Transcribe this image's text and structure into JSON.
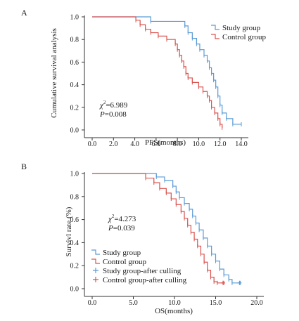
{
  "chart_data": [
    {
      "type": "line",
      "subtype": "kaplan-meier",
      "panel_label": "A",
      "xlabel": "PFS(months)",
      "ylabel": "Cumulative survival analysis",
      "xlim": [
        0,
        14.5
      ],
      "ylim": [
        0,
        1.0
      ],
      "x_ticks": [
        "0.0",
        "2.0",
        "4.0",
        "6.0",
        "8.0",
        "10.0",
        "12.0",
        "14.0"
      ],
      "y_ticks": [
        "0.0",
        "0.2",
        "0.4",
        "0.6",
        "0.8",
        "1.0"
      ],
      "legend_position": "top-right",
      "annotation": {
        "chi_label": "χ",
        "chi_sup": "2",
        "chi_value": "=6.989",
        "p_label": "P",
        "p_value": "=0.008"
      },
      "series": [
        {
          "name": "Study group",
          "color": "#5b9bd5",
          "steps": [
            [
              0,
              1.0
            ],
            [
              5.5,
              0.96
            ],
            [
              8.7,
              0.92
            ],
            [
              9.0,
              0.86
            ],
            [
              9.4,
              0.81
            ],
            [
              9.8,
              0.76
            ],
            [
              10.1,
              0.71
            ],
            [
              10.5,
              0.66
            ],
            [
              10.8,
              0.61
            ],
            [
              11.0,
              0.55
            ],
            [
              11.2,
              0.5
            ],
            [
              11.4,
              0.44
            ],
            [
              11.6,
              0.38
            ],
            [
              11.8,
              0.3
            ],
            [
              12.0,
              0.22
            ],
            [
              12.2,
              0.15
            ],
            [
              12.6,
              0.1
            ],
            [
              13.2,
              0.05
            ],
            [
              14.0,
              0.05
            ]
          ]
        },
        {
          "name": "Control group",
          "color": "#d9534f",
          "steps": [
            [
              0,
              1.0
            ],
            [
              4.1,
              0.97
            ],
            [
              4.5,
              0.93
            ],
            [
              5.0,
              0.89
            ],
            [
              5.5,
              0.86
            ],
            [
              6.2,
              0.83
            ],
            [
              7.0,
              0.8
            ],
            [
              7.8,
              0.76
            ],
            [
              8.0,
              0.71
            ],
            [
              8.2,
              0.66
            ],
            [
              8.4,
              0.61
            ],
            [
              8.6,
              0.56
            ],
            [
              8.8,
              0.5
            ],
            [
              9.0,
              0.46
            ],
            [
              9.4,
              0.42
            ],
            [
              10.0,
              0.38
            ],
            [
              10.4,
              0.34
            ],
            [
              10.8,
              0.3
            ],
            [
              11.0,
              0.26
            ],
            [
              11.2,
              0.2
            ],
            [
              11.5,
              0.15
            ],
            [
              11.8,
              0.1
            ],
            [
              12.0,
              0.05
            ],
            [
              12.2,
              0.02
            ]
          ]
        }
      ]
    },
    {
      "type": "line",
      "subtype": "kaplan-meier",
      "panel_label": "B",
      "xlabel": "OS(months)",
      "ylabel": "Survivl rate (%)",
      "xlim": [
        0,
        21
      ],
      "ylim": [
        0,
        1.0
      ],
      "x_ticks": [
        "0.0",
        "5.0",
        "10.0",
        "15.0",
        "20.0"
      ],
      "y_ticks": [
        "0.0",
        "0.2",
        "0.4",
        "0.6",
        "0.8",
        "1.0"
      ],
      "legend_position": "bottom-left",
      "annotation": {
        "chi_label": "χ",
        "chi_sup": "2",
        "chi_value": "=4.273",
        "p_label": "P",
        "p_value": "=0.039"
      },
      "series": [
        {
          "name": "Study group",
          "color": "#5b9bd5",
          "steps": [
            [
              0,
              1.0
            ],
            [
              7.8,
              0.97
            ],
            [
              8.8,
              0.94
            ],
            [
              9.8,
              0.89
            ],
            [
              10.2,
              0.84
            ],
            [
              10.6,
              0.79
            ],
            [
              11.2,
              0.74
            ],
            [
              11.8,
              0.69
            ],
            [
              12.2,
              0.63
            ],
            [
              12.6,
              0.57
            ],
            [
              13.0,
              0.51
            ],
            [
              13.5,
              0.44
            ],
            [
              14.0,
              0.37
            ],
            [
              14.5,
              0.3
            ],
            [
              15.0,
              0.24
            ],
            [
              15.5,
              0.17
            ],
            [
              16.0,
              0.12
            ],
            [
              16.6,
              0.08
            ],
            [
              17.0,
              0.05
            ],
            [
              18.0,
              0.05
            ]
          ]
        },
        {
          "name": "Control group",
          "color": "#d9534f",
          "steps": [
            [
              0,
              1.0
            ],
            [
              6.5,
              0.96
            ],
            [
              7.5,
              0.92
            ],
            [
              8.2,
              0.87
            ],
            [
              9.0,
              0.83
            ],
            [
              9.6,
              0.78
            ],
            [
              10.2,
              0.73
            ],
            [
              10.8,
              0.67
            ],
            [
              11.2,
              0.61
            ],
            [
              11.6,
              0.55
            ],
            [
              12.0,
              0.49
            ],
            [
              12.4,
              0.43
            ],
            [
              12.8,
              0.37
            ],
            [
              13.2,
              0.3
            ],
            [
              13.6,
              0.23
            ],
            [
              14.0,
              0.16
            ],
            [
              14.4,
              0.1
            ],
            [
              14.8,
              0.06
            ],
            [
              15.2,
              0.05
            ],
            [
              16.0,
              0.05
            ]
          ]
        }
      ],
      "censor_series": [
        {
          "name": "Study group-after culling",
          "color": "#5b9bd5",
          "points": [
            [
              17.9,
              0.05
            ]
          ]
        },
        {
          "name": "Control group-after culling",
          "color": "#d9534f",
          "points": [
            [
              15.9,
              0.05
            ]
          ]
        }
      ]
    }
  ]
}
